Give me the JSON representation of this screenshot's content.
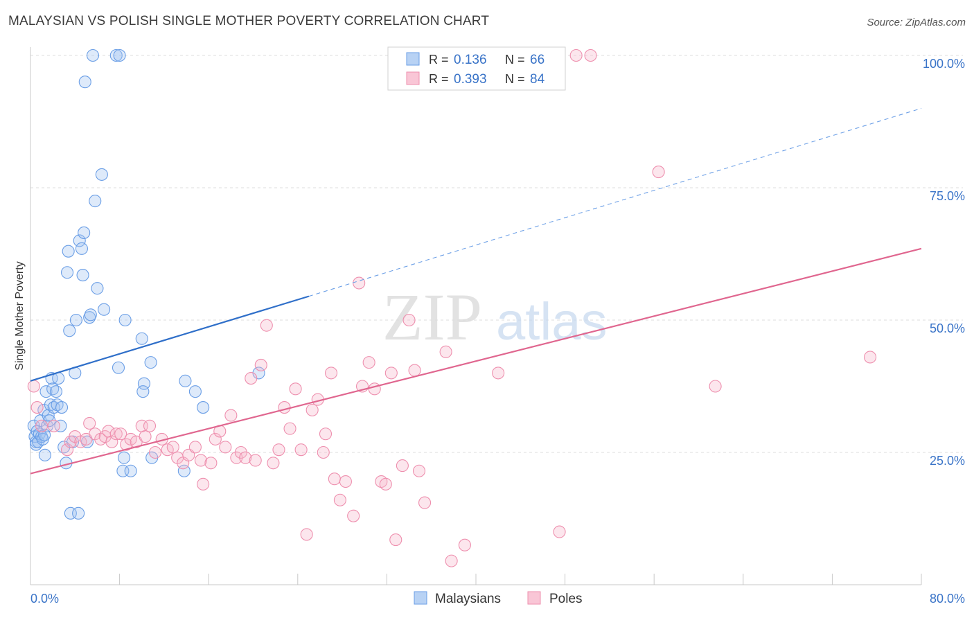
{
  "chart_data": {
    "type": "scatter",
    "title": "MALAYSIAN VS POLISH SINGLE MOTHER POVERTY CORRELATION CHART",
    "source": "Source: ZipAtlas.com",
    "xlabel": "",
    "ylabel": "Single Mother Poverty",
    "xlim": [
      0,
      80
    ],
    "ylim": [
      0,
      100
    ],
    "x_tick_labels": [
      "0.0%",
      "80.0%"
    ],
    "y_ticks": [
      25,
      50,
      75,
      100
    ],
    "y_tick_labels": [
      "25.0%",
      "50.0%",
      "75.0%",
      "100.0%"
    ],
    "grid": true,
    "watermark": "ZIPatlas",
    "legend_position": "top-center",
    "series": [
      {
        "name": "Malaysians",
        "color": "#6a9ee6",
        "r_label": "R =",
        "r_value": "0.136",
        "n_label": "N =",
        "n_value": "66",
        "trend": {
          "x": [
            0,
            25
          ],
          "y": [
            38.5,
            54.5
          ],
          "extend_to_x": 80,
          "extend_y": 90
        },
        "points": [
          [
            0.3,
            30
          ],
          [
            0.4,
            28
          ],
          [
            0.5,
            27
          ],
          [
            0.5,
            26.5
          ],
          [
            0.6,
            29
          ],
          [
            0.7,
            27
          ],
          [
            0.8,
            28.5
          ],
          [
            0.9,
            31
          ],
          [
            1.0,
            28
          ],
          [
            1.1,
            27.5
          ],
          [
            1.2,
            33
          ],
          [
            1.3,
            24.5
          ],
          [
            1.4,
            36.5
          ],
          [
            1.5,
            30
          ],
          [
            1.6,
            32
          ],
          [
            1.7,
            31
          ],
          [
            1.8,
            34
          ],
          [
            1.9,
            39
          ],
          [
            2.0,
            37
          ],
          [
            2.1,
            33.5
          ],
          [
            2.3,
            36.5
          ],
          [
            2.4,
            34
          ],
          [
            2.5,
            39
          ],
          [
            2.7,
            30
          ],
          [
            2.8,
            33.5
          ],
          [
            3.0,
            26
          ],
          [
            3.2,
            23
          ],
          [
            3.3,
            59
          ],
          [
            3.4,
            63
          ],
          [
            3.5,
            48
          ],
          [
            3.6,
            13.5
          ],
          [
            3.8,
            27
          ],
          [
            4.0,
            40
          ],
          [
            4.1,
            50
          ],
          [
            4.4,
            65
          ],
          [
            4.6,
            63.5
          ],
          [
            4.7,
            58.5
          ],
          [
            4.9,
            95
          ],
          [
            4.8,
            66.5
          ],
          [
            5.1,
            27
          ],
          [
            5.3,
            50.5
          ],
          [
            5.4,
            51
          ],
          [
            5.6,
            100
          ],
          [
            5.8,
            72.5
          ],
          [
            6.0,
            56
          ],
          [
            6.4,
            77.5
          ],
          [
            6.6,
            52
          ],
          [
            7.7,
            100
          ],
          [
            7.9,
            41
          ],
          [
            8.0,
            100
          ],
          [
            8.3,
            21.5
          ],
          [
            8.4,
            24
          ],
          [
            8.5,
            50
          ],
          [
            9.0,
            21.5
          ],
          [
            10.0,
            46.5
          ],
          [
            10.2,
            38
          ],
          [
            10.1,
            36.5
          ],
          [
            10.8,
            42
          ],
          [
            10.9,
            24
          ],
          [
            13.8,
            21.5
          ],
          [
            13.9,
            38.5
          ],
          [
            14.8,
            36.5
          ],
          [
            15.5,
            33.5
          ],
          [
            20.5,
            40
          ],
          [
            4.3,
            13.5
          ],
          [
            1.25,
            28.3
          ]
        ]
      },
      {
        "name": "Poles",
        "color": "#ee8fae",
        "r_label": "R =",
        "r_value": "0.393",
        "n_label": "N =",
        "n_value": "84",
        "trend": {
          "x": [
            0,
            80
          ],
          "y": [
            21,
            63.5
          ]
        },
        "points": [
          [
            0.3,
            37.5
          ],
          [
            0.6,
            33.5
          ],
          [
            1.0,
            30
          ],
          [
            2.1,
            30
          ],
          [
            3.3,
            25.5
          ],
          [
            3.6,
            27
          ],
          [
            4.0,
            28
          ],
          [
            4.5,
            27
          ],
          [
            5.0,
            27.5
          ],
          [
            5.3,
            30.5
          ],
          [
            5.8,
            28.5
          ],
          [
            6.3,
            27.5
          ],
          [
            6.7,
            28
          ],
          [
            7.0,
            29
          ],
          [
            7.3,
            27
          ],
          [
            7.7,
            28.5
          ],
          [
            8.1,
            28.5
          ],
          [
            8.6,
            26.5
          ],
          [
            9.0,
            27.5
          ],
          [
            9.5,
            27
          ],
          [
            10.0,
            30
          ],
          [
            10.3,
            28
          ],
          [
            10.7,
            30
          ],
          [
            11.2,
            25
          ],
          [
            11.8,
            27.5
          ],
          [
            12.3,
            25.5
          ],
          [
            12.8,
            26
          ],
          [
            13.2,
            24
          ],
          [
            13.7,
            23
          ],
          [
            14.2,
            24.5
          ],
          [
            14.8,
            26
          ],
          [
            15.3,
            23.5
          ],
          [
            15.5,
            19
          ],
          [
            16.2,
            23
          ],
          [
            16.6,
            27.5
          ],
          [
            17.0,
            29
          ],
          [
            17.5,
            26
          ],
          [
            18.0,
            32
          ],
          [
            18.5,
            24
          ],
          [
            18.9,
            25
          ],
          [
            19.3,
            24
          ],
          [
            19.8,
            39
          ],
          [
            20.2,
            23.5
          ],
          [
            20.7,
            41.5
          ],
          [
            21.2,
            49
          ],
          [
            21.8,
            23
          ],
          [
            22.3,
            25.5
          ],
          [
            22.8,
            33.5
          ],
          [
            23.3,
            29.5
          ],
          [
            23.8,
            37
          ],
          [
            24.3,
            25.5
          ],
          [
            24.8,
            9.5
          ],
          [
            25.3,
            33
          ],
          [
            25.8,
            35
          ],
          [
            26.3,
            25
          ],
          [
            27.0,
            40
          ],
          [
            27.3,
            20
          ],
          [
            27.8,
            16
          ],
          [
            28.3,
            19.5
          ],
          [
            29.0,
            13
          ],
          [
            29.5,
            57
          ],
          [
            29.8,
            37.5
          ],
          [
            30.4,
            42
          ],
          [
            30.9,
            37
          ],
          [
            31.5,
            19.5
          ],
          [
            31.9,
            19
          ],
          [
            32.4,
            40
          ],
          [
            32.8,
            8.5
          ],
          [
            33.4,
            22.5
          ],
          [
            34.0,
            50
          ],
          [
            34.5,
            40.5
          ],
          [
            34.9,
            21.5
          ],
          [
            35.4,
            15.5
          ],
          [
            37.3,
            44
          ],
          [
            37.8,
            4.5
          ],
          [
            39.0,
            7.5
          ],
          [
            42.0,
            40
          ],
          [
            47.5,
            10
          ],
          [
            49.0,
            100
          ],
          [
            50.3,
            100
          ],
          [
            56.4,
            78
          ],
          [
            61.5,
            37.5
          ],
          [
            75.4,
            43
          ],
          [
            26.5,
            28.5
          ]
        ]
      }
    ]
  }
}
